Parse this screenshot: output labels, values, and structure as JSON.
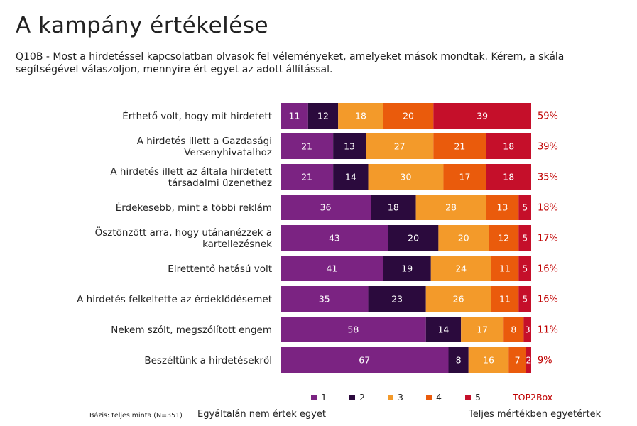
{
  "title": "A kampány értékelése",
  "question": "Q10B - Most a hirdetéssel kapcsolatban olvasok fel véleményeket, amelyeket mások mondtak. Kérem, a skála segítségével válaszoljon, mennyire ért egyet az adott állítással.",
  "colors": {
    "s1": "#7b2382",
    "s2": "#2b0a3d",
    "s3": "#f39a2a",
    "s4": "#ea5b0c",
    "s5": "#c50f2a",
    "top2": "#c00000"
  },
  "chart_data": {
    "type": "bar",
    "orientation": "horizontal-stacked-100",
    "categories": [
      "Érthető volt, hogy mit hirdetett",
      "A hirdetés illett a Gazdasági Versenyhivatalhoz",
      "A hirdetés illett az általa hirdetett társadalmi üzenethez",
      "Érdekesebb, mint a többi reklám",
      "Ösztönzött arra, hogy utánanézzek a kartellezésnek",
      "Elrettentő hatású volt",
      "A hirdetés felkeltette az érdeklődésemet",
      "Nekem szólt, megszólított engem",
      "Beszéltünk a hirdetésekről"
    ],
    "series": [
      {
        "name": "1",
        "values": [
          11,
          21,
          21,
          36,
          43,
          41,
          35,
          58,
          67
        ]
      },
      {
        "name": "2",
        "values": [
          12,
          13,
          14,
          18,
          20,
          19,
          23,
          14,
          8
        ]
      },
      {
        "name": "3",
        "values": [
          18,
          27,
          30,
          28,
          20,
          24,
          26,
          17,
          16
        ]
      },
      {
        "name": "4",
        "values": [
          20,
          21,
          17,
          13,
          12,
          11,
          11,
          8,
          7
        ]
      },
      {
        "name": "5",
        "values": [
          39,
          18,
          18,
          5,
          5,
          5,
          5,
          3,
          2
        ]
      }
    ],
    "top2box_label": "TOP2Box",
    "top2box": [
      "59%",
      "39%",
      "35%",
      "18%",
      "17%",
      "16%",
      "16%",
      "11%",
      "9%"
    ],
    "xlim": [
      0,
      100
    ]
  },
  "legend": {
    "items": [
      "1",
      "2",
      "3",
      "4",
      "5"
    ],
    "top2": "TOP2Box"
  },
  "footer": {
    "basis": "Bázis: teljes minta (N=351)",
    "scale_left": "Egyáltalán nem értek egyet",
    "scale_right": "Teljes mértékben egyetértek"
  }
}
